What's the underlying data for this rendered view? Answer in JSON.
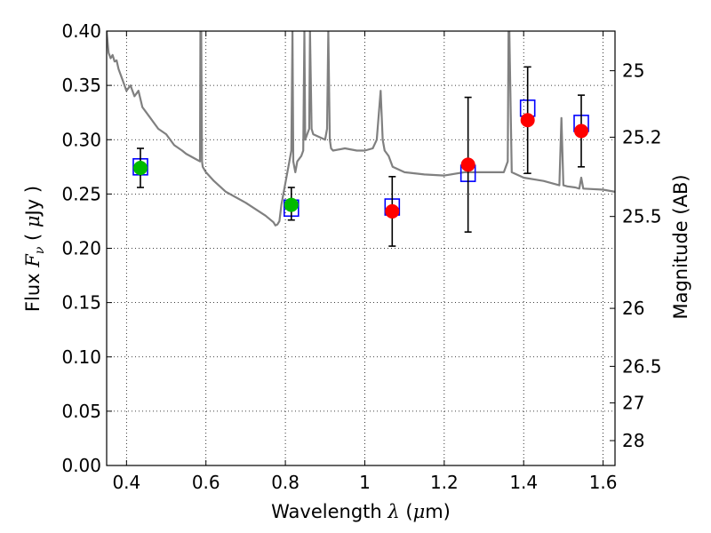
{
  "chart_data": {
    "type": "scatter",
    "xlabel": "Wavelength  λ (μm)",
    "ylabel": "Flux  F_ν  ( μJy )",
    "y2label": "Magnitude (AB)",
    "xlim": [
      0.35,
      1.63
    ],
    "ylim": [
      0.0,
      0.4
    ],
    "grid": true,
    "x_ticks": [
      0.4,
      0.6,
      0.8,
      1.0,
      1.2,
      1.4,
      1.6
    ],
    "x_tick_labels": [
      "0.4",
      "0.6",
      "0.8",
      "1",
      "1.2",
      "1.4",
      "1.6"
    ],
    "y_ticks": [
      0.0,
      0.05,
      0.1,
      0.15,
      0.2,
      0.25,
      0.3,
      0.35,
      0.4
    ],
    "y_tick_labels": [
      "0.00",
      "0.05",
      "0.10",
      "0.15",
      "0.20",
      "0.25",
      "0.30",
      "0.35",
      "0.40"
    ],
    "right_axis_ticks": [
      {
        "label": "25",
        "flux": 0.3635
      },
      {
        "label": "25.2",
        "flux": 0.3023
      },
      {
        "label": "25.5",
        "flux": 0.2293
      },
      {
        "label": "26",
        "flux": 0.1447
      },
      {
        "label": "26.5",
        "flux": 0.0913
      },
      {
        "label": "27",
        "flux": 0.0576
      },
      {
        "label": "28",
        "flux": 0.0229
      }
    ],
    "colors": {
      "model": "#808080",
      "green": "#00bb00",
      "red": "#ff0000",
      "box": "#0000ff",
      "errorbar": "#000000"
    },
    "model_spectrum": {
      "x": [
        0.35,
        0.355,
        0.36,
        0.365,
        0.37,
        0.375,
        0.38,
        0.39,
        0.4,
        0.41,
        0.42,
        0.43,
        0.44,
        0.45,
        0.46,
        0.47,
        0.48,
        0.5,
        0.52,
        0.54,
        0.55,
        0.57,
        0.585,
        0.586,
        0.588,
        0.59,
        0.592,
        0.6,
        0.62,
        0.65,
        0.7,
        0.75,
        0.77,
        0.775,
        0.78,
        0.785,
        0.79,
        0.8,
        0.81,
        0.815,
        0.818,
        0.82,
        0.825,
        0.83,
        0.84,
        0.845,
        0.848,
        0.85,
        0.86,
        0.862,
        0.866,
        0.87,
        0.9,
        0.905,
        0.908,
        0.912,
        0.915,
        0.92,
        0.95,
        0.98,
        1.0,
        1.02,
        1.03,
        1.04,
        1.045,
        1.05,
        1.06,
        1.07,
        1.1,
        1.15,
        1.2,
        1.25,
        1.3,
        1.35,
        1.36,
        1.362,
        1.364,
        1.37,
        1.4,
        1.45,
        1.49,
        1.495,
        1.5,
        1.51,
        1.53,
        1.54,
        1.545,
        1.55,
        1.6,
        1.63
      ],
      "y": [
        0.4,
        0.38,
        0.375,
        0.378,
        0.372,
        0.373,
        0.365,
        0.355,
        0.345,
        0.35,
        0.34,
        0.345,
        0.33,
        0.325,
        0.32,
        0.315,
        0.31,
        0.305,
        0.295,
        0.29,
        0.287,
        0.283,
        0.28,
        0.4,
        0.4,
        0.28,
        0.275,
        0.27,
        0.262,
        0.252,
        0.242,
        0.23,
        0.224,
        0.221,
        0.222,
        0.225,
        0.24,
        0.26,
        0.28,
        0.29,
        0.4,
        0.28,
        0.27,
        0.28,
        0.285,
        0.29,
        0.4,
        0.3,
        0.31,
        0.4,
        0.31,
        0.305,
        0.3,
        0.31,
        0.4,
        0.3,
        0.292,
        0.29,
        0.292,
        0.29,
        0.29,
        0.292,
        0.3,
        0.345,
        0.3,
        0.29,
        0.285,
        0.275,
        0.27,
        0.268,
        0.267,
        0.27,
        0.27,
        0.27,
        0.28,
        0.4,
        0.4,
        0.27,
        0.265,
        0.262,
        0.258,
        0.32,
        0.258,
        0.257,
        0.256,
        0.255,
        0.265,
        0.255,
        0.254,
        0.252
      ]
    },
    "points": [
      {
        "x": 0.435,
        "y": 0.274,
        "yerr_low": 0.256,
        "yerr_high": 0.292,
        "box_y": 0.275,
        "marker": "green"
      },
      {
        "x": 0.815,
        "y": 0.24,
        "yerr_low": 0.226,
        "yerr_high": 0.256,
        "box_y": 0.237,
        "marker": "green"
      },
      {
        "x": 1.069,
        "y": 0.234,
        "yerr_low": 0.202,
        "yerr_high": 0.266,
        "box_y": 0.238,
        "marker": "red"
      },
      {
        "x": 1.26,
        "y": 0.277,
        "yerr_low": 0.215,
        "yerr_high": 0.339,
        "box_y": 0.269,
        "marker": "red"
      },
      {
        "x": 1.41,
        "y": 0.318,
        "yerr_low": 0.269,
        "yerr_high": 0.367,
        "box_y": 0.329,
        "marker": "red"
      },
      {
        "x": 1.545,
        "y": 0.308,
        "yerr_low": 0.275,
        "yerr_high": 0.341,
        "box_y": 0.315,
        "marker": "red"
      }
    ]
  }
}
